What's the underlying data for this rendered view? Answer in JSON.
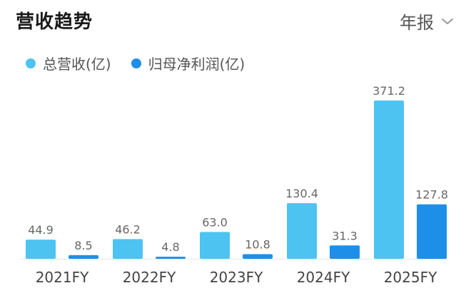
{
  "header": {
    "title": "营收趋势",
    "period_label": "年报"
  },
  "colors": {
    "revenue": "#4DC3F2",
    "net_profit": "#1E8FE8",
    "baseline": "#E6E6E6"
  },
  "icons": {
    "period_toggle": "chevron-down-icon"
  },
  "chart_data": {
    "type": "bar",
    "categories": [
      "2021FY",
      "2022FY",
      "2023FY",
      "2024FY",
      "2025FY"
    ],
    "series": [
      {
        "name": "总营收(亿)",
        "values": [
          44.9,
          46.2,
          63.0,
          130.4,
          371.2
        ],
        "labels": [
          "44.9",
          "46.2",
          "63.0",
          "130.4",
          "371.2"
        ]
      },
      {
        "name": "归母净利润(亿)",
        "values": [
          8.5,
          4.8,
          10.8,
          31.3,
          127.8
        ],
        "labels": [
          "8.5",
          "4.8",
          "10.8",
          "31.3",
          "127.8"
        ]
      }
    ],
    "legend": "top-left",
    "grid": false,
    "ylim": [
      0,
      371.2
    ]
  }
}
